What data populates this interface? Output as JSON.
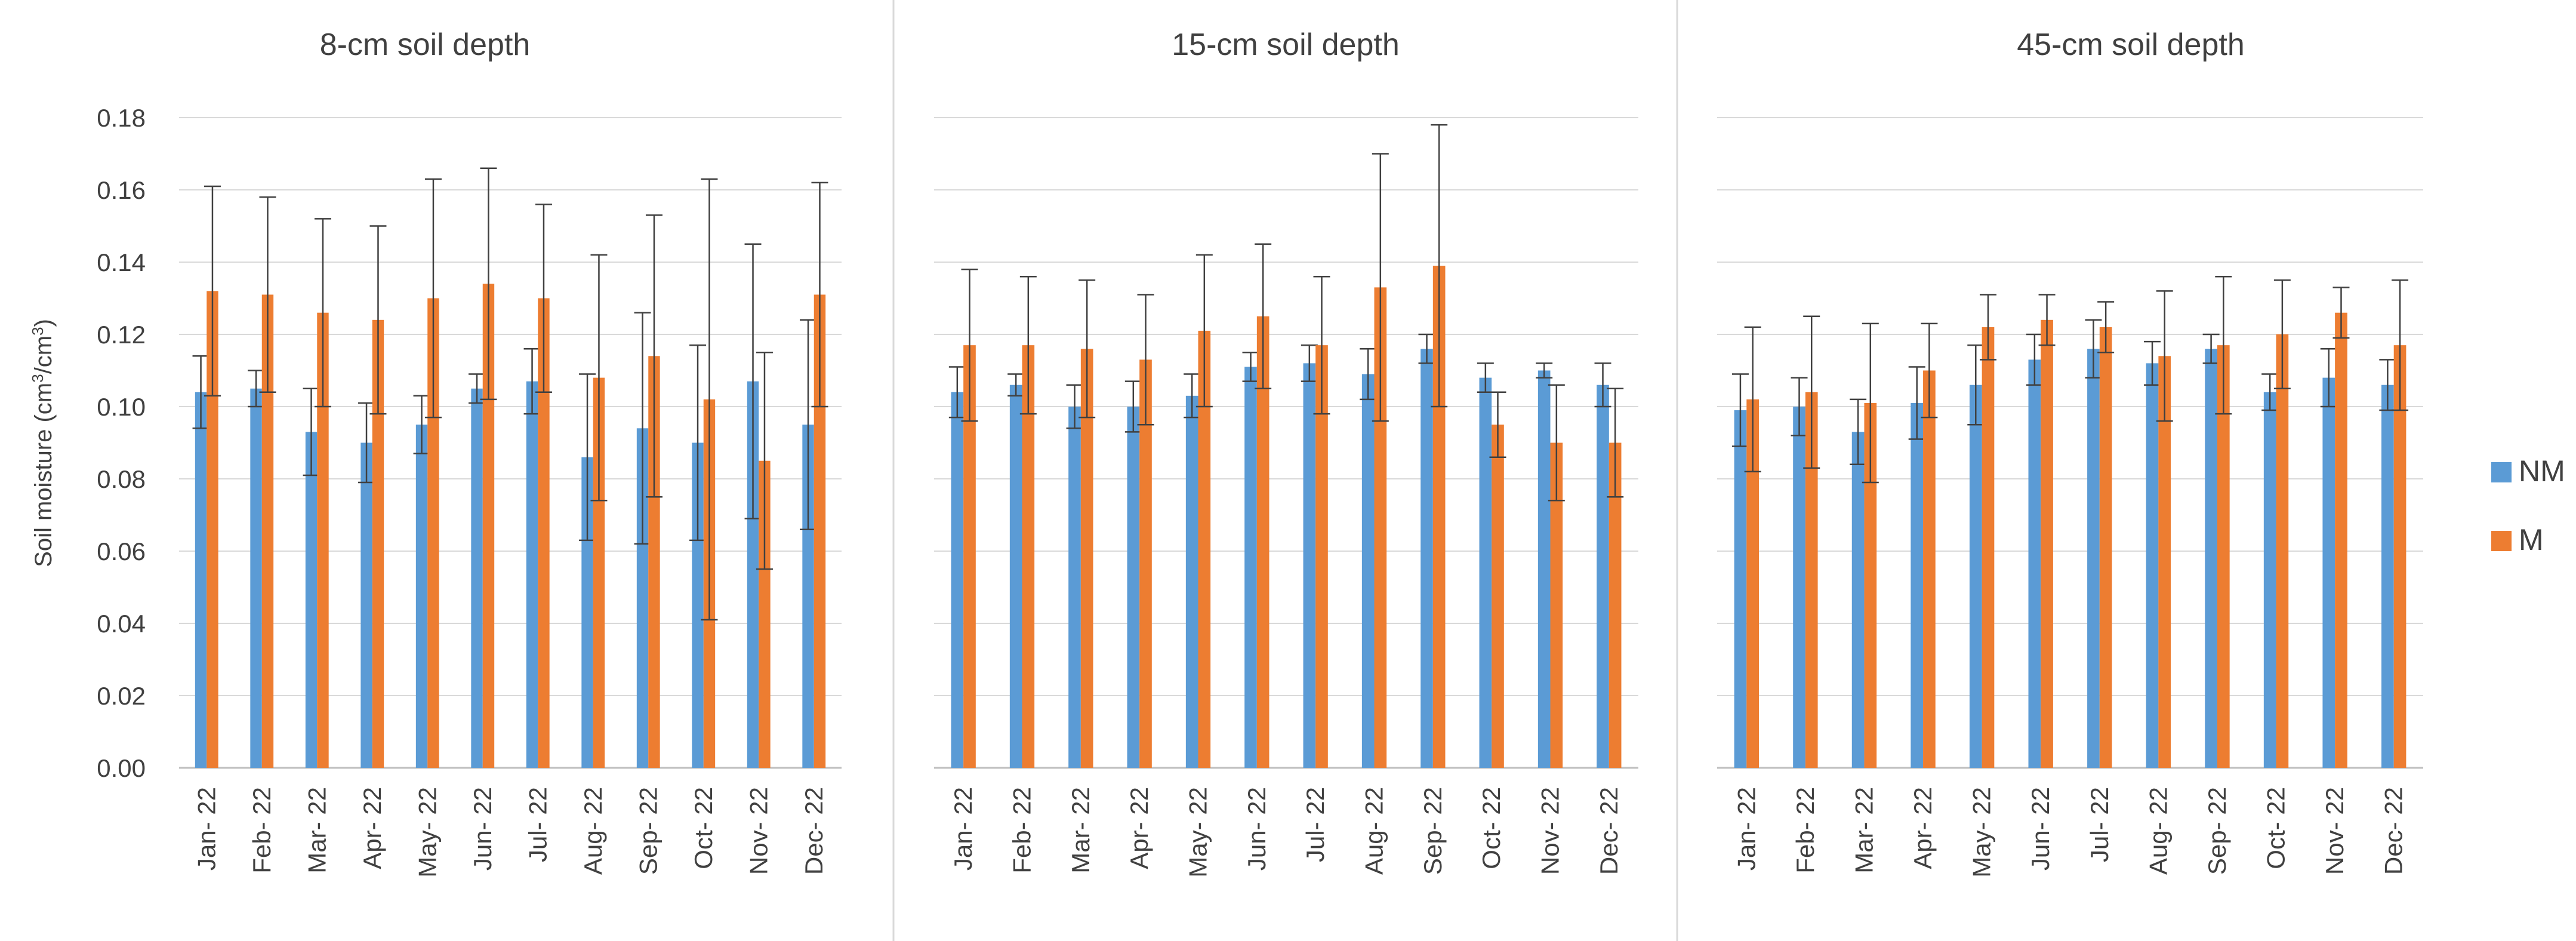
{
  "figure": {
    "ylabel_prefix": "Soil moisture (cm",
    "ylabel_mid": "/cm",
    "ylabel_sup": "3",
    "ylabel_suffix": ")"
  },
  "legend": {
    "items": [
      {
        "label": "NM",
        "color": "#5b9bd5"
      },
      {
        "label": "M",
        "color": "#ed7d31"
      }
    ]
  },
  "chart_data": [
    {
      "type": "bar",
      "title": "8-cm soil depth",
      "categories": [
        "Jan- 22",
        "Feb- 22",
        "Mar- 22",
        "Apr- 22",
        "May- 22",
        "Jun- 22",
        "Jul- 22",
        "Aug- 22",
        "Sep- 22",
        "Oct- 22",
        "Nov- 22",
        "Dec- 22"
      ],
      "ylim": [
        0,
        0.18
      ],
      "yticks": [
        "0.00",
        "0.02",
        "0.04",
        "0.06",
        "0.08",
        "0.10",
        "0.12",
        "0.14",
        "0.16",
        "0.18"
      ],
      "ylabel": "Soil moisture (cm3/cm3)",
      "series": [
        {
          "name": "NM",
          "color": "#5b9bd5",
          "values": [
            0.104,
            0.105,
            0.093,
            0.09,
            0.095,
            0.105,
            0.107,
            0.086,
            0.094,
            0.09,
            0.107,
            0.095
          ],
          "errors": [
            0.01,
            0.005,
            0.012,
            0.011,
            0.008,
            0.004,
            0.009,
            0.023,
            0.032,
            0.027,
            0.038,
            0.029
          ]
        },
        {
          "name": "M",
          "color": "#ed7d31",
          "values": [
            0.132,
            0.131,
            0.126,
            0.124,
            0.13,
            0.134,
            0.13,
            0.108,
            0.114,
            0.102,
            0.085,
            0.131
          ],
          "errors": [
            0.029,
            0.027,
            0.026,
            0.026,
            0.033,
            0.032,
            0.026,
            0.034,
            0.039,
            0.061,
            0.03,
            0.031
          ]
        }
      ]
    },
    {
      "type": "bar",
      "title": "15-cm soil depth",
      "categories": [
        "Jan- 22",
        "Feb- 22",
        "Mar- 22",
        "Apr- 22",
        "May- 22",
        "Jun- 22",
        "Jul- 22",
        "Aug- 22",
        "Sep- 22",
        "Oct- 22",
        "Nov- 22",
        "Dec- 22"
      ],
      "ylim": [
        0,
        0.18
      ],
      "series": [
        {
          "name": "NM",
          "color": "#5b9bd5",
          "values": [
            0.104,
            0.106,
            0.1,
            0.1,
            0.103,
            0.111,
            0.112,
            0.109,
            0.116,
            0.108,
            0.11,
            0.106
          ],
          "errors": [
            0.007,
            0.003,
            0.006,
            0.007,
            0.006,
            0.004,
            0.005,
            0.007,
            0.004,
            0.004,
            0.002,
            0.006
          ]
        },
        {
          "name": "M",
          "color": "#ed7d31",
          "values": [
            0.117,
            0.117,
            0.116,
            0.113,
            0.121,
            0.125,
            0.117,
            0.133,
            0.139,
            0.095,
            0.09,
            0.09
          ],
          "errors": [
            0.021,
            0.019,
            0.019,
            0.018,
            0.021,
            0.02,
            0.019,
            0.037,
            0.039,
            0.009,
            0.016,
            0.015
          ]
        }
      ]
    },
    {
      "type": "bar",
      "title": "45-cm soil depth",
      "categories": [
        "Jan- 22",
        "Feb- 22",
        "Mar- 22",
        "Apr- 22",
        "May- 22",
        "Jun- 22",
        "Jul- 22",
        "Aug- 22",
        "Sep- 22",
        "Oct- 22",
        "Nov- 22",
        "Dec- 22"
      ],
      "ylim": [
        0,
        0.18
      ],
      "series": [
        {
          "name": "NM",
          "color": "#5b9bd5",
          "values": [
            0.099,
            0.1,
            0.093,
            0.101,
            0.106,
            0.113,
            0.116,
            0.112,
            0.116,
            0.104,
            0.108,
            0.106
          ],
          "errors": [
            0.01,
            0.008,
            0.009,
            0.01,
            0.011,
            0.007,
            0.008,
            0.006,
            0.004,
            0.005,
            0.008,
            0.007
          ]
        },
        {
          "name": "M",
          "color": "#ed7d31",
          "values": [
            0.102,
            0.104,
            0.101,
            0.11,
            0.122,
            0.124,
            0.122,
            0.114,
            0.117,
            0.12,
            0.126,
            0.117
          ],
          "errors": [
            0.02,
            0.021,
            0.022,
            0.013,
            0.009,
            0.007,
            0.007,
            0.018,
            0.019,
            0.015,
            0.007,
            0.018
          ]
        }
      ]
    }
  ]
}
